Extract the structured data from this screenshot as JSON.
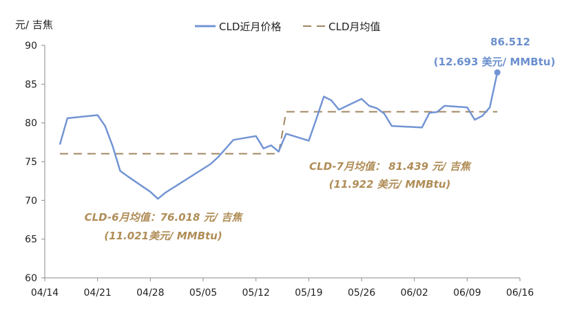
{
  "chart_data": {
    "type": "line",
    "ylabel": "元/ 吉焦",
    "ylim": [
      60,
      90
    ],
    "yticks": [
      "60",
      "65",
      "70",
      "75",
      "80",
      "85",
      "90"
    ],
    "xticks": [
      "04/14",
      "04/21",
      "04/28",
      "05/05",
      "05/12",
      "05/19",
      "05/26",
      "06/02",
      "06/09",
      "06/16"
    ],
    "grid": false,
    "legend": "top-center",
    "colors": {
      "price": "#7294d4",
      "average": "#a08560"
    },
    "series": [
      {
        "name": "CLD近月价格",
        "style": "solid",
        "points": [
          {
            "x": "04/16",
            "y": 77.2
          },
          {
            "x": "04/17",
            "y": 80.6
          },
          {
            "x": "04/18",
            "y": 80.7
          },
          {
            "x": "04/21",
            "y": 81.0
          },
          {
            "x": "04/22",
            "y": 79.6
          },
          {
            "x": "04/23",
            "y": 77.0
          },
          {
            "x": "04/24",
            "y": 73.8
          },
          {
            "x": "04/25",
            "y": 73.1
          },
          {
            "x": "04/28",
            "y": 71.1
          },
          {
            "x": "04/29",
            "y": 70.2
          },
          {
            "x": "04/30",
            "y": 71.0
          },
          {
            "x": "05/06",
            "y": 74.7
          },
          {
            "x": "05/07",
            "y": 75.6
          },
          {
            "x": "05/08",
            "y": 76.7
          },
          {
            "x": "05/09",
            "y": 77.8
          },
          {
            "x": "05/12",
            "y": 78.3
          },
          {
            "x": "05/13",
            "y": 76.7
          },
          {
            "x": "05/14",
            "y": 77.1
          },
          {
            "x": "05/15",
            "y": 76.3
          },
          {
            "x": "05/16",
            "y": 78.6
          },
          {
            "x": "05/19",
            "y": 77.7
          },
          {
            "x": "05/20",
            "y": 80.5
          },
          {
            "x": "05/21",
            "y": 83.4
          },
          {
            "x": "05/22",
            "y": 82.9
          },
          {
            "x": "05/23",
            "y": 81.7
          },
          {
            "x": "05/26",
            "y": 83.1
          },
          {
            "x": "05/27",
            "y": 82.2
          },
          {
            "x": "05/28",
            "y": 81.9
          },
          {
            "x": "05/29",
            "y": 81.2
          },
          {
            "x": "05/30",
            "y": 79.6
          },
          {
            "x": "06/03",
            "y": 79.4
          },
          {
            "x": "06/04",
            "y": 81.3
          },
          {
            "x": "06/05",
            "y": 81.4
          },
          {
            "x": "06/06",
            "y": 82.2
          },
          {
            "x": "06/09",
            "y": 82.0
          },
          {
            "x": "06/10",
            "y": 80.4
          },
          {
            "x": "06/11",
            "y": 80.9
          },
          {
            "x": "06/12",
            "y": 82.0
          },
          {
            "x": "06/13",
            "y": 86.512
          }
        ]
      },
      {
        "name": "CLD月均值",
        "style": "dashed",
        "segments": [
          {
            "from": "04/16",
            "to": "05/15",
            "y": 76.018
          },
          {
            "from": "05/16",
            "to": "06/13",
            "y": 81.439
          }
        ]
      }
    ],
    "annotations": [
      {
        "id": "june",
        "lines": [
          "CLD-6月均值：76.018 元/ 吉焦",
          "(11.021美元/ MMBtu)"
        ],
        "color": "#b08d57"
      },
      {
        "id": "july",
        "lines": [
          "CLD-7月均值：  81.439 元/ 吉焦",
          "(11.922 美元/ MMBtu)"
        ],
        "color": "#b08d57"
      },
      {
        "id": "last",
        "lines": [
          "86.512",
          "(12.693 美元/ MMBtu)"
        ],
        "color": "#6b8fcf"
      }
    ]
  }
}
